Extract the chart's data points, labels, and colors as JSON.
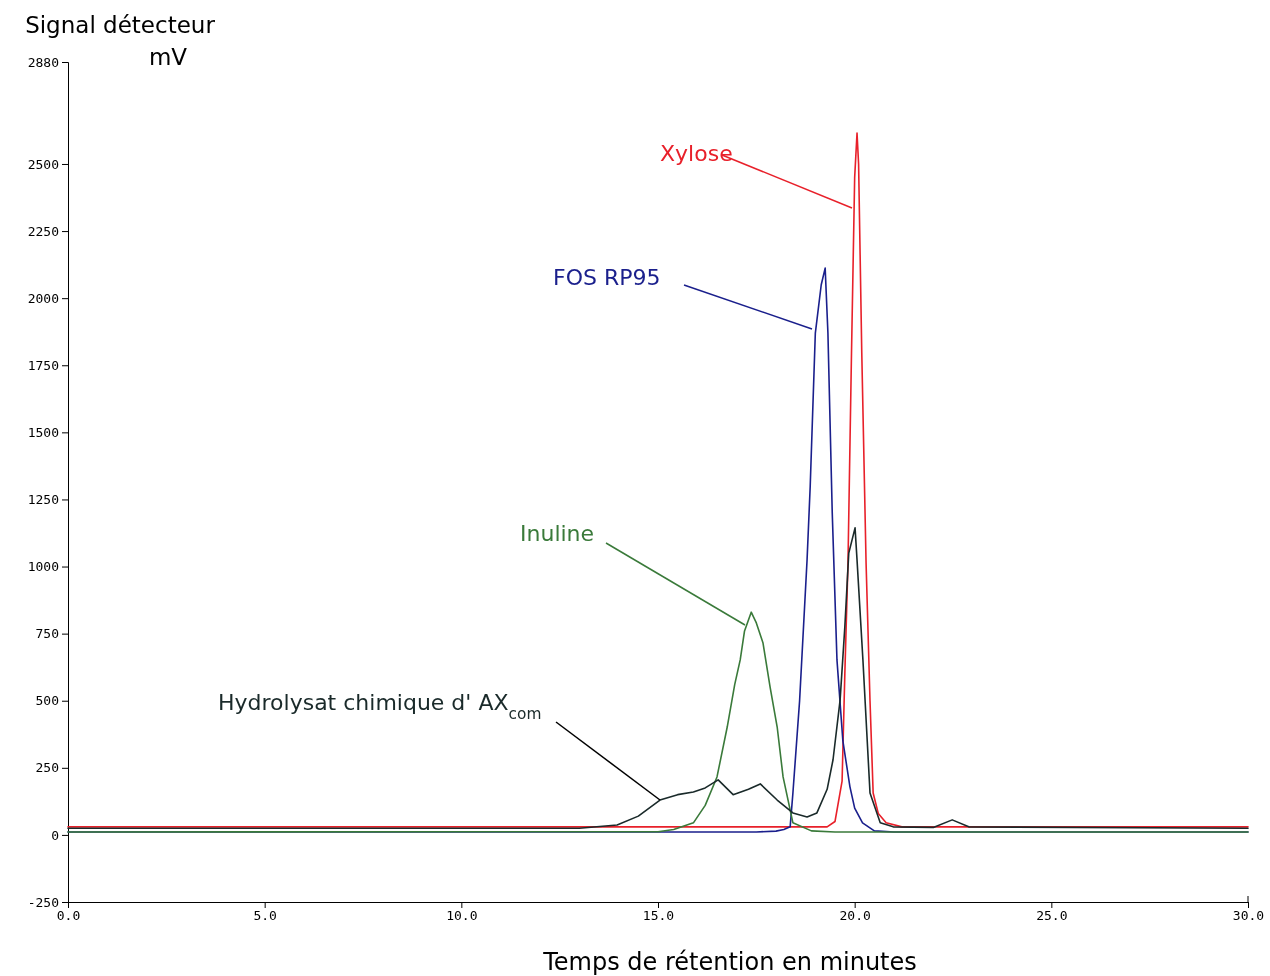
{
  "chart_data": {
    "type": "line",
    "xlabel": "Temps de rétention en minutes",
    "ylabel": "Signal détecteur\nmV",
    "xlim": [
      0,
      30
    ],
    "ylim": [
      -250,
      2880
    ],
    "xticks": [
      {
        "value": 0,
        "label": "0.0"
      },
      {
        "value": 5,
        "label": "5.0"
      },
      {
        "value": 10,
        "label": "10.0"
      },
      {
        "value": 15,
        "label": "15.0"
      },
      {
        "value": 20,
        "label": "20.0"
      },
      {
        "value": 25,
        "label": "25.0"
      },
      {
        "value": 30,
        "label": "30.0"
      }
    ],
    "yticks": [
      -250,
      0,
      250,
      500,
      750,
      1000,
      1250,
      1500,
      1750,
      2000,
      2250,
      2500,
      2880
    ],
    "grid": false,
    "legend": false,
    "marker": "none",
    "line_style": "solid",
    "series": [
      {
        "name": "Xylose",
        "color": "#e8202a",
        "x": [
          0,
          19.3,
          19.5,
          19.68,
          19.75,
          19.83,
          19.92,
          20.0,
          20.06,
          20.1,
          20.18,
          20.29,
          20.39,
          20.47,
          20.6,
          20.8,
          21.2,
          30
        ],
        "values": [
          30,
          30,
          50,
          200,
          600,
          1013,
          1800,
          2450,
          2615,
          2500,
          1800,
          1013,
          500,
          156,
          80,
          45,
          30,
          30
        ]
      },
      {
        "name": "FOS RP95",
        "color": "#1a1f8c",
        "x": [
          0,
          17.5,
          18.0,
          18.2,
          18.36,
          18.43,
          18.6,
          18.79,
          18.87,
          19.0,
          19.15,
          19.25,
          19.32,
          19.43,
          19.55,
          19.7,
          19.88,
          20.0,
          20.2,
          20.5,
          21,
          30
        ],
        "values": [
          11,
          11,
          14,
          20,
          30,
          156,
          500,
          1025,
          1300,
          1870,
          2050,
          2112,
          1870,
          1200,
          652,
          350,
          179,
          100,
          45,
          15,
          11,
          11
        ]
      },
      {
        "name": "Inuline",
        "color": "#3a7a3a",
        "x": [
          0,
          15.0,
          15.4,
          15.9,
          16.2,
          16.5,
          16.76,
          16.95,
          17.09,
          17.2,
          17.37,
          17.5,
          17.67,
          17.85,
          18.03,
          18.18,
          18.43,
          18.9,
          19.5,
          30
        ],
        "values": [
          11,
          12,
          20,
          45,
          110,
          216,
          402,
          560,
          652,
          760,
          830,
          790,
          715,
          551,
          402,
          216,
          45,
          15,
          11,
          11
        ]
      },
      {
        "name": "Hydrolysat chimique d' AX$_{com}$",
        "color": "#1a2a2a",
        "x": [
          0,
          13.0,
          13.96,
          14.5,
          15.05,
          15.5,
          15.9,
          16.2,
          16.53,
          16.91,
          17.3,
          17.6,
          18.03,
          18.43,
          18.79,
          19.04,
          19.3,
          19.45,
          19.63,
          19.75,
          19.85,
          20.01,
          20.06,
          20.21,
          20.39,
          20.65,
          20.98,
          22.0,
          22.48,
          22.9,
          30
        ],
        "values": [
          25,
          25,
          37,
          70,
          130,
          150,
          160,
          175,
          205,
          150,
          170,
          190,
          130,
          82,
          67,
          82,
          170,
          280,
          503,
          775,
          1050,
          1144,
          1025,
          652,
          156,
          45,
          30,
          28,
          56,
          30,
          25
        ]
      }
    ]
  }
}
